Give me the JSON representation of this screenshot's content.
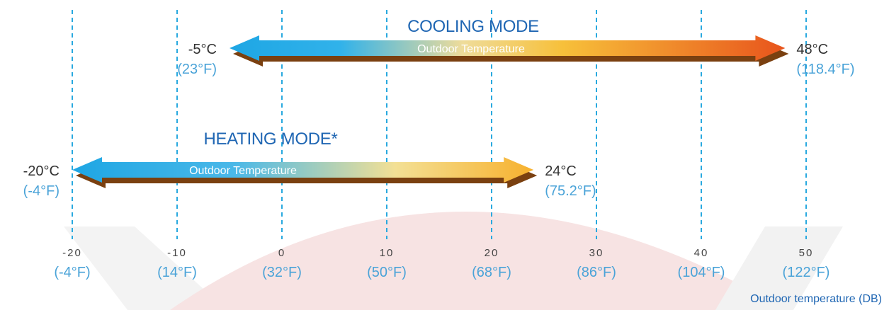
{
  "chart_data": {
    "type": "range",
    "xlabel": "Outdoor temperature (DB)",
    "xlim": [
      -20,
      50
    ],
    "ticks": [
      {
        "c": "-20",
        "f": "(-4°F)",
        "value": -20
      },
      {
        "c": "-10",
        "f": "(14°F)",
        "value": -10
      },
      {
        "c": "0",
        "f": "(32°F)",
        "value": 0
      },
      {
        "c": "10",
        "f": "(50°F)",
        "value": 10
      },
      {
        "c": "20",
        "f": "(68°F)",
        "value": 20
      },
      {
        "c": "30",
        "f": "(86°F)",
        "value": 30
      },
      {
        "c": "40",
        "f": "(104°F)",
        "value": 40
      },
      {
        "c": "50",
        "f": "(122°F)",
        "value": 50
      }
    ],
    "ranges": [
      {
        "name": "COOLING MODE",
        "arrow_text": "Outdoor Temperature",
        "min": -5,
        "max": 48,
        "min_c": "-5°C",
        "min_f": "(23°F)",
        "max_c": "48°C",
        "max_f": "(118.4°F)",
        "gradient": [
          "#1ea6e4",
          "#f7c53a",
          "#e8541c"
        ]
      },
      {
        "name": "HEATING MODE*",
        "arrow_text": "Outdoor Temperature",
        "min": -20,
        "max": 24,
        "min_c": "-20°C",
        "min_f": "(-4°F)",
        "max_c": "24°C",
        "max_f": "(75.2°F)",
        "gradient": [
          "#1ea6e4",
          "#f3dc8a",
          "#f7b12e"
        ]
      }
    ],
    "grid": "vertical dashed",
    "colors": {
      "grid": "#29a9df",
      "title": "#1f66b3",
      "fahrenheit": "#4aa3d8",
      "arrow_shadow": "#7a4010",
      "watermark": "#f5dede"
    }
  }
}
